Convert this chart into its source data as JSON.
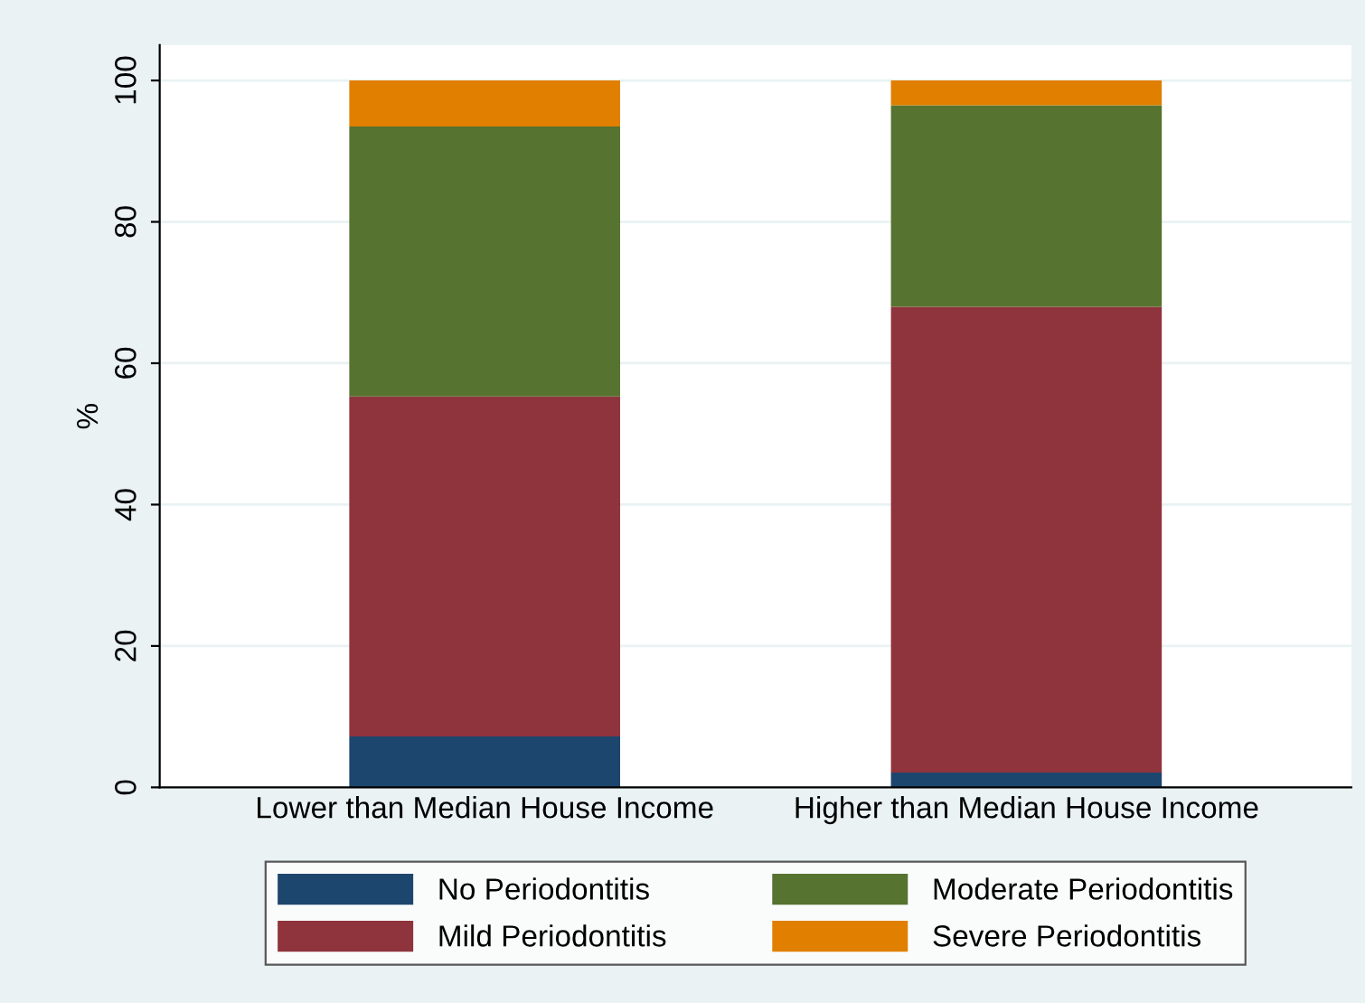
{
  "chart_data": {
    "type": "bar",
    "stacked": true,
    "ylabel": "%",
    "categories": [
      "Lower than Median House Income",
      "Higher than Median House Income"
    ],
    "series": [
      {
        "name": "No Periodontitis",
        "color": "#1d466e",
        "values": [
          7.2,
          2.1
        ]
      },
      {
        "name": "Mild Periodontitis",
        "color": "#8f343d",
        "values": [
          48.1,
          65.9
        ]
      },
      {
        "name": "Moderate Periodontitis",
        "color": "#56732f",
        "values": [
          38.2,
          28.5
        ]
      },
      {
        "name": "Severe Periodontitis",
        "color": "#e17f00",
        "values": [
          6.5,
          3.5
        ]
      }
    ],
    "ylim": [
      0,
      105
    ],
    "yticks": [
      0,
      20,
      40,
      60,
      80,
      100
    ],
    "grid": "y",
    "legend": "bottom"
  }
}
